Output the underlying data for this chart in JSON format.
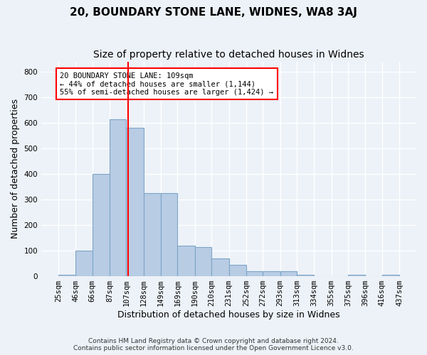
{
  "title": "20, BOUNDARY STONE LANE, WIDNES, WA8 3AJ",
  "subtitle": "Size of property relative to detached houses in Widnes",
  "xlabel": "Distribution of detached houses by size in Widnes",
  "ylabel": "Number of detached properties",
  "bar_values": [
    5,
    100,
    400,
    615,
    580,
    325,
    325,
    120,
    115,
    70,
    45,
    20,
    20,
    20,
    5,
    0,
    0,
    5,
    0,
    5
  ],
  "categories": [
    "25sqm",
    "46sqm",
    "66sqm",
    "87sqm",
    "107sqm",
    "128sqm",
    "149sqm",
    "169sqm",
    "190sqm",
    "210sqm",
    "231sqm",
    "252sqm",
    "272sqm",
    "293sqm",
    "313sqm",
    "334sqm",
    "355sqm",
    "375sqm",
    "396sqm",
    "416sqm",
    "437sqm"
  ],
  "bar_color": "#b8cce4",
  "bar_edge_color": "#7da6c8",
  "bar_positions": [
    25,
    46,
    66,
    87,
    107,
    128,
    149,
    169,
    190,
    210,
    231,
    252,
    272,
    293,
    313,
    334,
    355,
    375,
    396,
    416
  ],
  "bar_widths": [
    21,
    20,
    21,
    20,
    21,
    21,
    20,
    21,
    20,
    21,
    21,
    20,
    21,
    20,
    21,
    21,
    20,
    21,
    20,
    21
  ],
  "red_line_x": 109,
  "ylim": [
    0,
    840
  ],
  "yticks": [
    0,
    100,
    200,
    300,
    400,
    500,
    600,
    700,
    800
  ],
  "annotation_text": "20 BOUNDARY STONE LANE: 109sqm\n← 44% of detached houses are smaller (1,144)\n55% of semi-detached houses are larger (1,424) →",
  "footer_line1": "Contains HM Land Registry data © Crown copyright and database right 2024.",
  "footer_line2": "Contains public sector information licensed under the Open Government Licence v3.0.",
  "bg_color": "#edf2f8",
  "plot_bg_color": "#edf2f8",
  "grid_color": "#ffffff",
  "title_fontsize": 11,
  "subtitle_fontsize": 10,
  "tick_fontsize": 7.5,
  "ylabel_fontsize": 9,
  "xlabel_fontsize": 9
}
